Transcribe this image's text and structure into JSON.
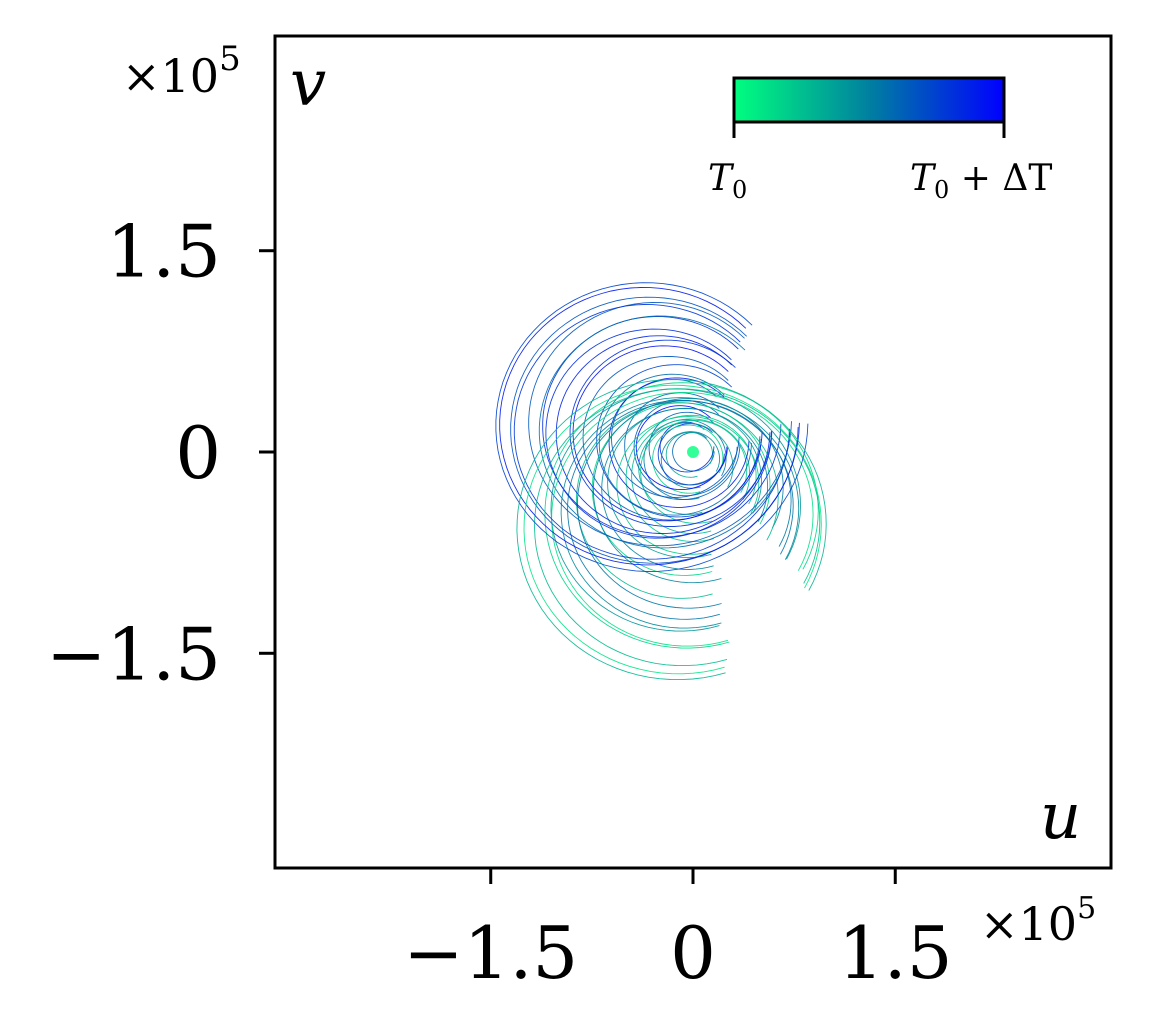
{
  "chart_data": {
    "type": "line",
    "title": "",
    "xlabel": "u",
    "ylabel": "v",
    "x_multiplier_label": "×10",
    "x_multiplier_exp": "5",
    "y_multiplier_label": "×10",
    "y_multiplier_exp": "5",
    "xlim": [
      -3.1,
      3.1
    ],
    "ylim": [
      -3.1,
      3.1
    ],
    "xticks": [
      -1.5,
      0,
      1.5
    ],
    "xtick_labels": [
      "−1.5",
      "0",
      "1.5"
    ],
    "yticks": [
      1.5,
      0,
      -1.5
    ],
    "ytick_labels": [
      "1.5",
      "0",
      "−1.5"
    ],
    "grid": false,
    "colorbar": {
      "position": "top-right",
      "label_start": "T",
      "label_start_sub": "0",
      "label_end": "T",
      "label_end_sub": "0",
      "label_end_suffix": " + ΔT",
      "colors": [
        "#00ff7f",
        "#0080a0",
        "#0000ff"
      ]
    },
    "description_of_series": "many looped phase-space trajectories colored by time",
    "trajectory_family": {
      "count": 46,
      "center": [
        0.0,
        0.0
      ],
      "radius_range": [
        0.15,
        1.15
      ],
      "offset_upper": [
        -0.35,
        0.25
      ],
      "offset_lower": [
        -0.1,
        -0.55
      ]
    }
  }
}
